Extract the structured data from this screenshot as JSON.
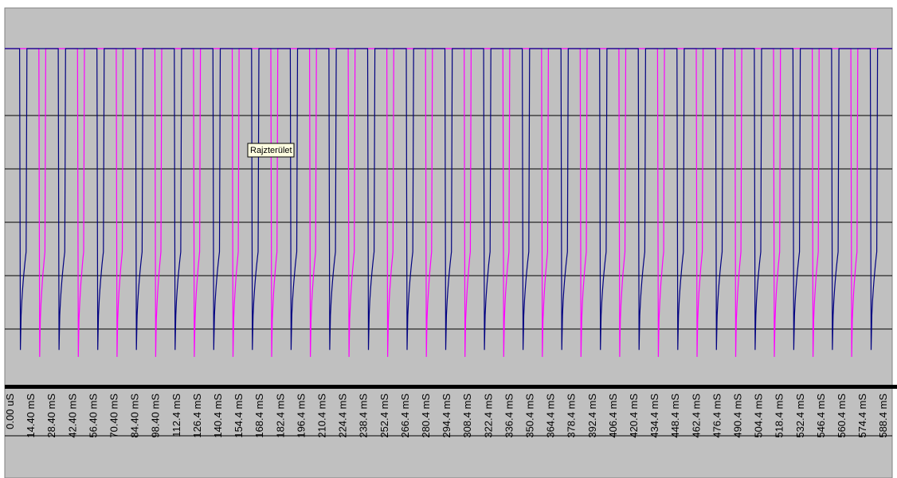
{
  "tooltip": "Rajzterület",
  "colors": {
    "plot_area": "#c0c0c0",
    "series_a": "#000080",
    "series_b": "#ff00ff",
    "gridline": "#000000",
    "axis": "#000000"
  },
  "chart_data": {
    "type": "line",
    "title": "",
    "xlabel": "",
    "ylabel": "",
    "grid": true,
    "legend": "none",
    "x_tick_labels": [
      "0.00 uS",
      "14.40 mS",
      "28.40 mS",
      "42.40 mS",
      "56.40 mS",
      "70.40 mS",
      "84.40 mS",
      "98.40 mS",
      "112.4 mS",
      "126.4 mS",
      "140.4 mS",
      "154.4 mS",
      "168.4 mS",
      "182.4 mS",
      "196.4 mS",
      "210.4 mS",
      "224.4 mS",
      "238.4 mS",
      "252.4 mS",
      "266.4 mS",
      "280.4 mS",
      "294.4 mS",
      "308.4 mS",
      "322.4 mS",
      "336.4 mS",
      "350.4 mS",
      "364.4 mS",
      "378.4 mS",
      "392.4 mS",
      "406.4 mS",
      "420.4 mS",
      "434.4 mS",
      "448.4 mS",
      "462.4 mS",
      "476.4 mS",
      "490.4 mS",
      "504.4 mS",
      "518.4 mS",
      "532.4 mS",
      "546.4 mS",
      "560.4 mS",
      "574.4 mS",
      "588.4 mS"
    ],
    "xlim_ms": [
      0,
      599
    ],
    "y_gridlines": 7,
    "series": [
      {
        "color": "#000080",
        "waveform": "sawtooth",
        "low_level": 0.14,
        "high_level": 1.0,
        "drop_times_ms": [
          10.0,
          36.1,
          62.2,
          88.3,
          114.4,
          140.5,
          166.6,
          192.7,
          218.8,
          244.9,
          271.0,
          297.1,
          323.2,
          349.3,
          375.4,
          401.5,
          427.6,
          453.7,
          479.8,
          505.9,
          532.0,
          558.1,
          584.2
        ],
        "ramp_duration_ms": 7.0
      },
      {
        "color": "#ff00ff",
        "waveform": "sawtooth",
        "low_level": 0.12,
        "high_level": 1.0,
        "drop_times_ms": [
          23.0,
          49.1,
          75.2,
          101.3,
          127.4,
          153.5,
          179.6,
          205.7,
          231.8,
          257.9,
          284.0,
          310.1,
          336.2,
          362.3,
          388.4,
          414.5,
          440.6,
          466.7,
          492.8,
          518.9,
          545.0,
          571.1
        ],
        "ramp_duration_ms": 6.5
      }
    ]
  }
}
